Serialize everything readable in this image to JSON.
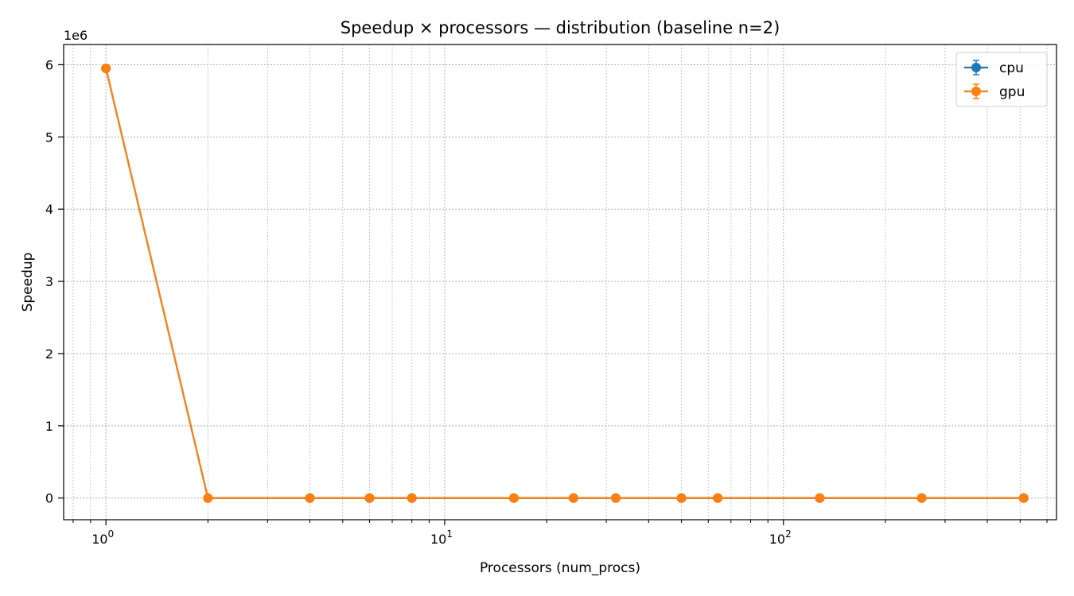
{
  "chart_data": {
    "type": "line",
    "title": "Speedup × processors — distribution (baseline n=2)",
    "xlabel": "Processors (num_procs)",
    "ylabel": "Speedup",
    "y_offset_label": "1e6",
    "x_scale": "log",
    "xlim": [
      0.75,
      640
    ],
    "ylim": [
      -300000,
      6280000
    ],
    "x_ticks": [
      1,
      10,
      100
    ],
    "x_tick_labels": [
      {
        "base": "10",
        "exp": "0"
      },
      {
        "base": "10",
        "exp": "1"
      },
      {
        "base": "10",
        "exp": "2"
      }
    ],
    "y_ticks": [
      0,
      1000000,
      2000000,
      3000000,
      4000000,
      5000000,
      6000000
    ],
    "y_tick_labels": [
      "0",
      "1",
      "2",
      "3",
      "4",
      "5",
      "6"
    ],
    "grid": true,
    "legend_position": "top-right",
    "series": [
      {
        "name": "cpu",
        "color": "#1f77b4",
        "x": [
          1,
          2,
          4,
          6,
          8,
          16,
          24,
          32,
          50,
          64,
          128,
          256,
          512
        ],
        "y": [
          5950000,
          1,
          2,
          3,
          4,
          7,
          10,
          12,
          15,
          17,
          22,
          26,
          30
        ]
      },
      {
        "name": "gpu",
        "color": "#ff7f0e",
        "x": [
          1,
          2,
          4,
          6,
          8,
          16,
          24,
          32,
          50,
          64,
          128,
          256,
          512
        ],
        "y": [
          5950000,
          1,
          2,
          3,
          4,
          7,
          10,
          12,
          15,
          17,
          22,
          26,
          30
        ]
      }
    ]
  }
}
